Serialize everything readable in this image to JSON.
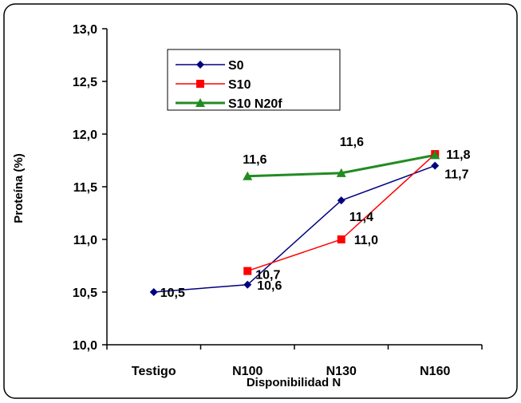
{
  "chart_data": {
    "type": "line",
    "title": "",
    "xlabel": "Disponibilidad N",
    "ylabel": "Proteína (%)",
    "categories": [
      "Testigo",
      "N100",
      "N130",
      "N160"
    ],
    "ylim": [
      10.0,
      13.0
    ],
    "yticks": [
      "10,0",
      "10,5",
      "11,0",
      "11,5",
      "12,0",
      "12,5",
      "13,0"
    ],
    "grid": false,
    "legend_position": "top-left",
    "series": [
      {
        "name": "S0",
        "color": "#000080",
        "marker": "diamond",
        "values": [
          10.5,
          10.57,
          11.37,
          11.7
        ],
        "labels": [
          "10,5",
          "10,6",
          "11,4",
          "11,7"
        ]
      },
      {
        "name": "S10",
        "color": "#ff0000",
        "marker": "square",
        "values": [
          null,
          10.7,
          11.0,
          11.81
        ],
        "labels": [
          null,
          "10,7",
          "11,0",
          "11,8"
        ]
      },
      {
        "name": "S10 N20f",
        "color": "#218c21",
        "marker": "triangle",
        "values": [
          null,
          11.6,
          11.63,
          11.8
        ],
        "labels": [
          null,
          "11,6",
          "11,6",
          null
        ]
      }
    ]
  }
}
